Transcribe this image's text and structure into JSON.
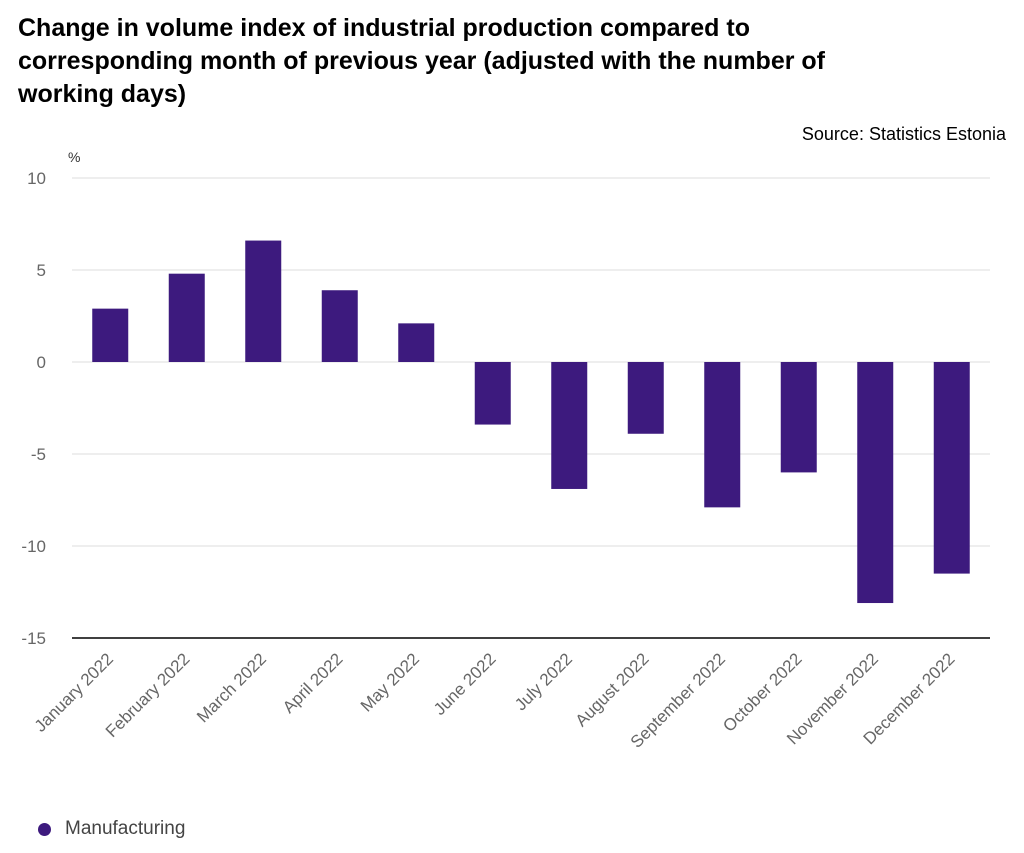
{
  "chart_data": {
    "type": "bar",
    "title": "Change in volume index of industrial production compared to corresponding month of previous year (adjusted with the number of working days)",
    "source": "Source: Statistics Estonia",
    "unit_label": "%",
    "categories": [
      "January 2022",
      "February 2022",
      "March 2022",
      "April 2022",
      "May 2022",
      "June 2022",
      "July 2022",
      "August 2022",
      "September 2022",
      "October 2022",
      "November 2022",
      "December 2022"
    ],
    "series": [
      {
        "name": "Manufacturing",
        "color": "#3d1a7e",
        "values": [
          2.9,
          4.8,
          6.6,
          3.9,
          2.1,
          -3.4,
          -6.9,
          -3.9,
          -7.9,
          -6.0,
          -13.1,
          -11.5
        ]
      }
    ],
    "ylim": [
      -15,
      10
    ],
    "yticks": [
      10,
      5,
      0,
      -5,
      -10,
      -15
    ],
    "grid": true,
    "legend_position": "bottom-left"
  }
}
